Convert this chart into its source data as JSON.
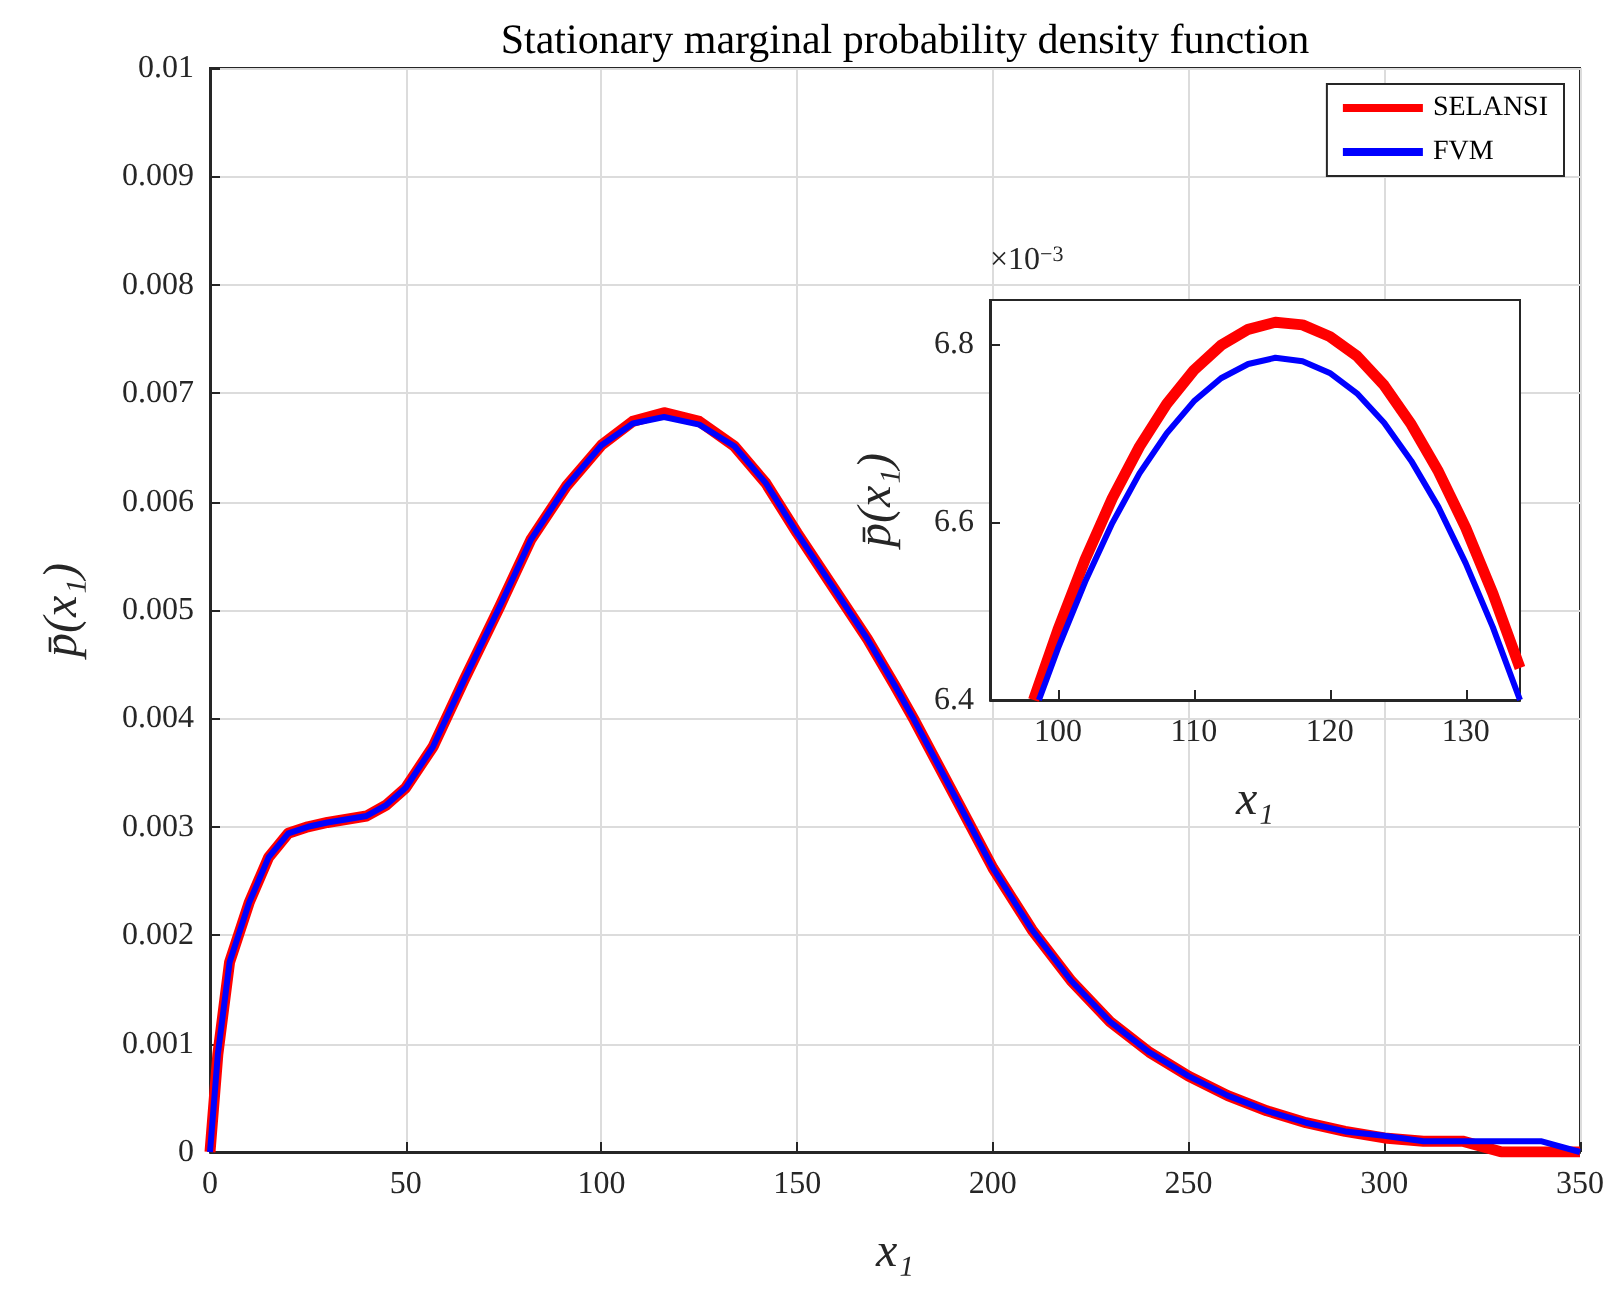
{
  "chart_data": [
    {
      "type": "line",
      "title": "Stationary marginal probability density function",
      "xlabel": "x₁",
      "ylabel": "p̄(x₁)",
      "x": [
        0,
        2,
        5,
        10,
        15,
        20,
        25,
        30,
        40,
        45,
        50,
        57,
        65,
        74,
        82,
        91,
        100,
        108,
        116,
        125,
        134,
        142,
        150,
        159,
        168,
        175,
        180,
        190,
        200,
        210,
        220,
        230,
        240,
        250,
        260,
        270,
        280,
        290,
        300,
        310,
        320,
        330,
        340,
        350
      ],
      "series": [
        {
          "name": "SELANSI",
          "color": "#ff0000",
          "values": [
            0,
            0.0009,
            0.00175,
            0.0023,
            0.00272,
            0.00294,
            0.003,
            0.00304,
            0.0031,
            0.0032,
            0.00336,
            0.00374,
            0.00436,
            0.00503,
            0.00565,
            0.00614,
            0.00652,
            0.00674,
            0.00682,
            0.00674,
            0.00651,
            0.00617,
            0.00571,
            0.00522,
            0.00473,
            0.0043,
            0.00398,
            0.0033,
            0.00262,
            0.00205,
            0.00158,
            0.0012,
            0.00092,
            0.0007,
            0.00052,
            0.00038,
            0.00027,
            0.00019,
            0.00013,
            0.0001,
            0.0001,
            0,
            0,
            0
          ]
        },
        {
          "name": "FVM",
          "color": "#0000ff",
          "values": [
            0,
            0.0009,
            0.00175,
            0.0023,
            0.00272,
            0.00294,
            0.003,
            0.00304,
            0.0031,
            0.0032,
            0.00336,
            0.00374,
            0.00436,
            0.00503,
            0.00565,
            0.00614,
            0.00652,
            0.00672,
            0.00678,
            0.00671,
            0.00651,
            0.00617,
            0.00571,
            0.00522,
            0.00473,
            0.0043,
            0.00398,
            0.0033,
            0.00262,
            0.00205,
            0.00158,
            0.0012,
            0.00092,
            0.0007,
            0.00052,
            0.00038,
            0.00027,
            0.00019,
            0.00015,
            0.0001,
            0.0001,
            0.0001,
            0.0001,
            0
          ]
        }
      ],
      "xlim": [
        0,
        350
      ],
      "xticks": [
        0,
        50,
        100,
        150,
        200,
        250,
        300,
        350
      ],
      "ylim": [
        0,
        0.01
      ],
      "yticks": [
        0,
        0.001,
        0.002,
        0.003,
        0.004,
        0.005,
        0.006,
        0.007,
        0.008,
        0.009,
        0.01
      ],
      "grid": true,
      "legend": "top right"
    },
    {
      "type": "line",
      "xlabel": "x₁",
      "ylabel": "p̄(x₁)",
      "annotations": [
        "×10$^{−3}$"
      ],
      "series": [
        {
          "color": "#ff0000",
          "x": [
            98.2,
            100,
            102,
            104,
            106,
            108,
            110,
            112,
            114,
            116,
            118,
            120,
            122,
            124,
            126,
            128,
            130,
            132,
            134
          ],
          "values": [
            6.4,
            6.479,
            6.558,
            6.627,
            6.685,
            6.733,
            6.771,
            6.799,
            6.817,
            6.825,
            6.822,
            6.809,
            6.787,
            6.754,
            6.71,
            6.657,
            6.594,
            6.52,
            6.436
          ]
        },
        {
          "color": "#0000ff",
          "x": [
            98.6,
            100,
            102,
            104,
            106,
            108,
            110,
            112,
            114,
            116,
            118,
            120,
            122,
            124,
            126,
            128,
            130,
            132,
            134
          ],
          "values": [
            6.4,
            6.458,
            6.533,
            6.599,
            6.655,
            6.7,
            6.736,
            6.762,
            6.778,
            6.785,
            6.781,
            6.768,
            6.745,
            6.712,
            6.669,
            6.617,
            6.554,
            6.482,
            6.4
          ]
        }
      ],
      "xlim": [
        95,
        134
      ],
      "xticks": [
        100,
        110,
        120,
        130
      ],
      "ylim": [
        6.4,
        6.85
      ],
      "yticks": [
        6.4,
        6.6,
        6.8
      ]
    }
  ]
}
